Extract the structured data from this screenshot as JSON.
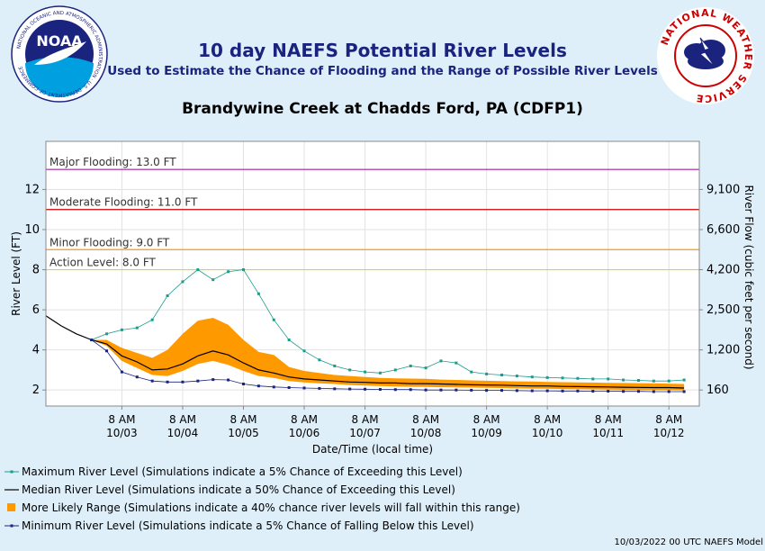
{
  "header": {
    "title": "10 day NAEFS Potential River Levels",
    "subtitle": "Used to Estimate the Chance of Flooding and the Range of Possible River Levels",
    "station": "Brandywine Creek at Chadds Ford, PA (CDFP1)"
  },
  "logos": {
    "noaa_text": "NOAA",
    "noaa_ring": "NATIONAL OCEANIC AND ATMOSPHERIC ADMINISTRATION · U.S. DEPARTMENT OF COMMERCE",
    "nws_ring": "NATIONAL WEATHER SERVICE"
  },
  "footer": {
    "model": "10/03/2022 00 UTC NAEFS Model"
  },
  "legend": [
    {
      "label": "Maximum River Level (Simulations indicate a 5% Chance of Exceeding this Level)",
      "icon": "max-line-icon"
    },
    {
      "label": "Median River Level (Simulations indicate a 50% Chance of Exceeding this Level)",
      "icon": "median-line-icon"
    },
    {
      "label": "More Likely Range (Simulations indicate a 40% chance river levels will fall within this range)",
      "icon": "range-swatch-icon"
    },
    {
      "label": "Minimum River Level (Simulations indicate a 5% Chance of Falling Below this Level)",
      "icon": "min-line-icon"
    }
  ],
  "colors": {
    "max_line": "#1a9c8c",
    "median_line": "#000000",
    "range_fill": "#ff9900",
    "min_line": "#1a237e",
    "major": "#a020a0",
    "moderate": "#cc0000",
    "minor": "#ff9900",
    "action": "#dddd00",
    "title": "#1a237e"
  },
  "chart_data": {
    "type": "line",
    "xlabel": "Date/Time (local time)",
    "ylabel": "River Level (FT)",
    "ylabel_right": "River Flow (cubic feet per second)",
    "ylim": [
      1.2,
      14.4
    ],
    "xlim_hours": [
      -18,
      240
    ],
    "y_ticks": [
      2,
      4,
      6,
      8,
      10,
      12
    ],
    "y_tick_labels": [
      "2",
      "4",
      "6",
      "8",
      "10",
      "12"
    ],
    "right_ticks": [
      {
        "stage": 2.0,
        "label": "160"
      },
      {
        "stage": 4.0,
        "label": "1,200"
      },
      {
        "stage": 6.0,
        "label": "2,500"
      },
      {
        "stage": 8.0,
        "label": "4,200"
      },
      {
        "stage": 10.0,
        "label": "6,600"
      },
      {
        "stage": 12.0,
        "label": "9,100"
      }
    ],
    "x_ticks": [
      {
        "hour": 12,
        "time": "8 AM",
        "date": "10/03"
      },
      {
        "hour": 36,
        "time": "8 AM",
        "date": "10/04"
      },
      {
        "hour": 60,
        "time": "8 AM",
        "date": "10/05"
      },
      {
        "hour": 84,
        "time": "8 AM",
        "date": "10/06"
      },
      {
        "hour": 108,
        "time": "8 AM",
        "date": "10/07"
      },
      {
        "hour": 132,
        "time": "8 AM",
        "date": "10/08"
      },
      {
        "hour": 156,
        "time": "8 AM",
        "date": "10/09"
      },
      {
        "hour": 180,
        "time": "8 AM",
        "date": "10/10"
      },
      {
        "hour": 204,
        "time": "8 AM",
        "date": "10/11"
      },
      {
        "hour": 228,
        "time": "8 AM",
        "date": "10/12"
      }
    ],
    "flood_levels": [
      {
        "name": "Major Flooding: 13.0 FT",
        "value": 13.0,
        "color": "#a020a0"
      },
      {
        "name": "Moderate Flooding: 11.0 FT",
        "value": 11.0,
        "color": "#cc0000"
      },
      {
        "name": "Minor Flooding: 9.0 FT",
        "value": 9.0,
        "color": "#ff9900"
      },
      {
        "name": "Action Level: 8.0 FT",
        "value": 8.0,
        "color": "#dddd00"
      }
    ],
    "observed": {
      "x": [
        -18,
        -12,
        -6,
        0
      ],
      "y": [
        5.7,
        5.2,
        4.8,
        4.5
      ]
    },
    "x": [
      0,
      6,
      12,
      18,
      24,
      30,
      36,
      42,
      48,
      54,
      60,
      66,
      72,
      78,
      84,
      90,
      96,
      102,
      108,
      114,
      120,
      126,
      132,
      138,
      144,
      150,
      156,
      162,
      168,
      174,
      180,
      186,
      192,
      198,
      204,
      210,
      216,
      222,
      228,
      234
    ],
    "series": [
      {
        "name": "Maximum River Level",
        "values": [
          4.5,
          4.8,
          5.0,
          5.1,
          5.5,
          6.7,
          7.4,
          8.0,
          7.5,
          7.9,
          8.0,
          6.8,
          5.5,
          4.5,
          3.95,
          3.5,
          3.2,
          3.0,
          2.9,
          2.85,
          3.0,
          3.2,
          3.1,
          3.45,
          3.35,
          2.9,
          2.8,
          2.75,
          2.7,
          2.65,
          2.62,
          2.6,
          2.58,
          2.55,
          2.55,
          2.5,
          2.48,
          2.45,
          2.45,
          2.5
        ]
      },
      {
        "name": "Median River Level",
        "values": [
          4.5,
          4.3,
          3.7,
          3.4,
          3.0,
          3.05,
          3.3,
          3.7,
          3.95,
          3.75,
          3.35,
          3.0,
          2.85,
          2.65,
          2.55,
          2.5,
          2.45,
          2.4,
          2.38,
          2.35,
          2.35,
          2.32,
          2.32,
          2.3,
          2.28,
          2.26,
          2.25,
          2.24,
          2.22,
          2.2,
          2.2,
          2.18,
          2.17,
          2.16,
          2.15,
          2.14,
          2.13,
          2.12,
          2.12,
          2.1
        ]
      },
      {
        "name": "More Likely Range (upper)",
        "values": [
          4.5,
          4.5,
          4.1,
          3.85,
          3.6,
          4.0,
          4.8,
          5.45,
          5.6,
          5.25,
          4.5,
          3.9,
          3.75,
          3.15,
          2.95,
          2.85,
          2.75,
          2.7,
          2.65,
          2.6,
          2.58,
          2.57,
          2.56,
          2.52,
          2.5,
          2.48,
          2.46,
          2.45,
          2.43,
          2.42,
          2.4,
          2.39,
          2.38,
          2.37,
          2.36,
          2.35,
          2.34,
          2.33,
          2.32,
          2.3
        ]
      },
      {
        "name": "More Likely Range (lower)",
        "values": [
          4.5,
          4.2,
          3.45,
          3.1,
          2.75,
          2.7,
          2.95,
          3.3,
          3.45,
          3.25,
          2.95,
          2.7,
          2.6,
          2.45,
          2.38,
          2.33,
          2.3,
          2.25,
          2.22,
          2.2,
          2.18,
          2.16,
          2.15,
          2.14,
          2.13,
          2.12,
          2.11,
          2.1,
          2.08,
          2.07,
          2.06,
          2.05,
          2.04,
          2.03,
          2.02,
          2.01,
          2.0,
          2.0,
          1.99,
          1.98
        ]
      },
      {
        "name": "Minimum River Level",
        "values": [
          4.5,
          3.95,
          2.9,
          2.65,
          2.45,
          2.4,
          2.4,
          2.45,
          2.52,
          2.5,
          2.3,
          2.2,
          2.15,
          2.12,
          2.1,
          2.08,
          2.06,
          2.05,
          2.04,
          2.03,
          2.02,
          2.02,
          2.0,
          2.0,
          2.0,
          1.99,
          1.98,
          1.98,
          1.97,
          1.96,
          1.96,
          1.95,
          1.95,
          1.94,
          1.94,
          1.93,
          1.93,
          1.92,
          1.92,
          1.92
        ]
      }
    ]
  }
}
